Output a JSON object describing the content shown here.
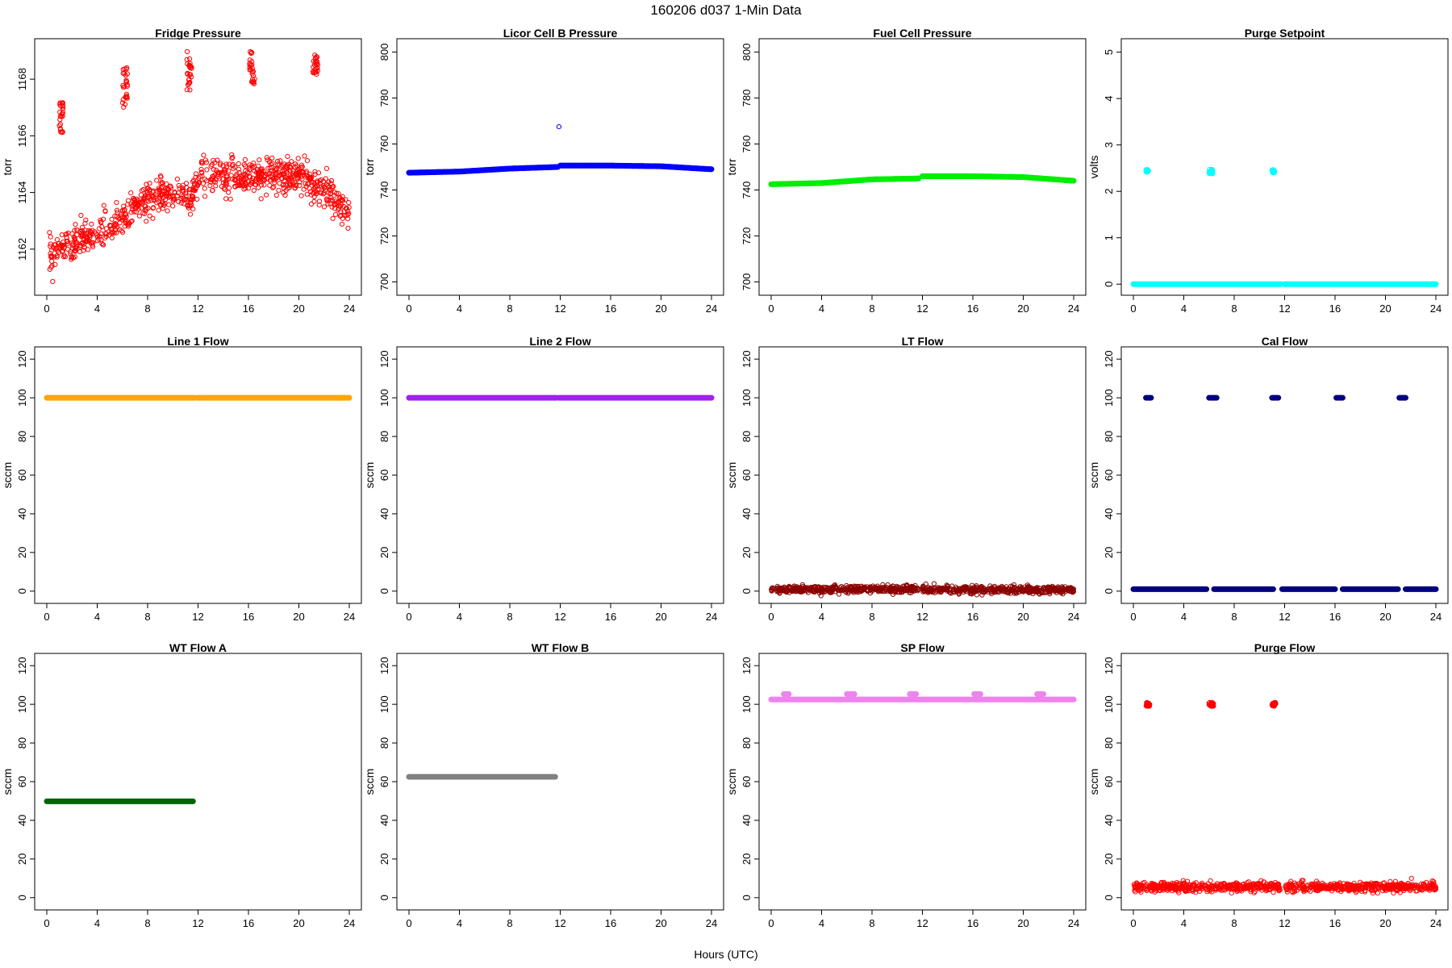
{
  "figure": {
    "title": "160206    d037    1-Min Data",
    "xlabel": "Hours (UTC)"
  },
  "chart_data": [
    {
      "type": "scatter",
      "title": "Fridge Pressure",
      "ylabel": "torr",
      "color": "#ff0000",
      "xlim": [
        0,
        24
      ],
      "xticks": [
        0,
        4,
        8,
        12,
        16,
        20,
        24
      ],
      "ylim": [
        1160.6,
        1169.2
      ],
      "yticks": [
        1162,
        1164,
        1166,
        1168
      ],
      "series": [
        {
          "kind": "noise_trend",
          "points": [
            [
              0.2,
              1161.8
            ],
            [
              2,
              1162.2
            ],
            [
              4,
              1162.5
            ],
            [
              6,
              1163.0
            ],
            [
              7,
              1163.5
            ],
            [
              9,
              1163.9
            ],
            [
              11.5,
              1163.8
            ],
            [
              12,
              1164.6
            ],
            [
              16,
              1164.6
            ],
            [
              20,
              1164.6
            ],
            [
              22,
              1164.1
            ],
            [
              24,
              1163.3
            ]
          ],
          "noise": 0.32
        },
        {
          "kind": "cluster",
          "x": [
            1.0,
            1.3
          ],
          "y": [
            1166.1,
            1167.2
          ]
        },
        {
          "kind": "cluster",
          "x": [
            6.0,
            6.4
          ],
          "y": [
            1167.0,
            1168.4
          ]
        },
        {
          "kind": "cluster",
          "x": [
            11.1,
            11.5
          ],
          "y": [
            1167.6,
            1169.0
          ]
        },
        {
          "kind": "cluster",
          "x": [
            16.1,
            16.5
          ],
          "y": [
            1167.8,
            1169.0
          ]
        },
        {
          "kind": "cluster",
          "x": [
            21.1,
            21.5
          ],
          "y": [
            1168.1,
            1168.9
          ]
        }
      ]
    },
    {
      "type": "scatter",
      "title": "Licor Cell B Pressure",
      "ylabel": "torr",
      "color": "#0000ff",
      "xlim": [
        0,
        24
      ],
      "xticks": [
        0,
        4,
        8,
        12,
        16,
        20,
        24
      ],
      "ylim": [
        697,
        803
      ],
      "yticks": [
        700,
        720,
        740,
        760,
        780,
        800
      ],
      "series": [
        {
          "kind": "line",
          "points": [
            [
              0,
              747.5
            ],
            [
              4,
              748.0
            ],
            [
              8,
              749.3
            ],
            [
              11.8,
              750.0
            ]
          ]
        },
        {
          "kind": "line",
          "points": [
            [
              12,
              750.6
            ],
            [
              16,
              750.6
            ],
            [
              20,
              750.3
            ],
            [
              24,
              749.0
            ]
          ]
        },
        {
          "kind": "point",
          "x": 11.9,
          "y": 767.5
        }
      ]
    },
    {
      "type": "scatter",
      "title": "Fuel Cell Pressure",
      "ylabel": "torr",
      "color": "#00ee00",
      "xlim": [
        0,
        24
      ],
      "xticks": [
        0,
        4,
        8,
        12,
        16,
        20,
        24
      ],
      "ylim": [
        697,
        803
      ],
      "yticks": [
        700,
        720,
        740,
        760,
        780,
        800
      ],
      "series": [
        {
          "kind": "line",
          "points": [
            [
              0,
              742.5
            ],
            [
              4,
              743.0
            ],
            [
              8,
              744.6
            ],
            [
              11.7,
              745.0
            ]
          ]
        },
        {
          "kind": "line",
          "points": [
            [
              12,
              746.0
            ],
            [
              16,
              746.0
            ],
            [
              20,
              745.6
            ],
            [
              24,
              744.0
            ]
          ]
        }
      ]
    },
    {
      "type": "scatter",
      "title": "Purge Setpoint",
      "ylabel": "volts",
      "color": "#00ffff",
      "xlim": [
        0,
        24
      ],
      "xticks": [
        0,
        4,
        8,
        12,
        16,
        20,
        24
      ],
      "ylim": [
        -0.1,
        5.15
      ],
      "yticks": [
        0,
        1,
        2,
        3,
        4,
        5
      ],
      "series": [
        {
          "kind": "line",
          "points": [
            [
              0,
              0.0
            ],
            [
              11.7,
              0.0
            ]
          ]
        },
        {
          "kind": "line",
          "points": [
            [
              12,
              0.0
            ],
            [
              24,
              0.0
            ]
          ]
        },
        {
          "kind": "cluster",
          "x": [
            1.0,
            1.2
          ],
          "y": [
            2.4,
            2.47
          ]
        },
        {
          "kind": "cluster",
          "x": [
            6.0,
            6.3
          ],
          "y": [
            2.38,
            2.48
          ]
        },
        {
          "kind": "cluster",
          "x": [
            11.0,
            11.2
          ],
          "y": [
            2.4,
            2.47
          ]
        }
      ]
    },
    {
      "type": "scatter",
      "title": "Line 1 Flow",
      "ylabel": "sccm",
      "color": "#ffa500",
      "xlim": [
        0,
        24
      ],
      "xticks": [
        0,
        4,
        8,
        12,
        16,
        20,
        24
      ],
      "ylim": [
        -3,
        123
      ],
      "yticks": [
        0,
        20,
        40,
        60,
        80,
        100,
        120
      ],
      "series": [
        {
          "kind": "line",
          "points": [
            [
              0,
              100
            ],
            [
              11.7,
              100
            ]
          ]
        },
        {
          "kind": "line",
          "points": [
            [
              11.9,
              100
            ],
            [
              24,
              100
            ]
          ]
        }
      ]
    },
    {
      "type": "scatter",
      "title": "Line 2 Flow",
      "ylabel": "sccm",
      "color": "#a020f0",
      "xlim": [
        0,
        24
      ],
      "xticks": [
        0,
        4,
        8,
        12,
        16,
        20,
        24
      ],
      "ylim": [
        -3,
        123
      ],
      "yticks": [
        0,
        20,
        40,
        60,
        80,
        100,
        120
      ],
      "series": [
        {
          "kind": "line",
          "points": [
            [
              0,
              100
            ],
            [
              11.7,
              100
            ]
          ]
        },
        {
          "kind": "line",
          "points": [
            [
              11.9,
              100
            ],
            [
              24,
              100
            ]
          ]
        }
      ]
    },
    {
      "type": "scatter",
      "title": "LT Flow",
      "ylabel": "sccm",
      "color": "#8b0000",
      "xlim": [
        0,
        24
      ],
      "xticks": [
        0,
        4,
        8,
        12,
        16,
        20,
        24
      ],
      "ylim": [
        -3,
        123
      ],
      "yticks": [
        0,
        20,
        40,
        60,
        80,
        100,
        120
      ],
      "series": [
        {
          "kind": "noise_trend",
          "points": [
            [
              0,
              1.0
            ],
            [
              11.7,
              1.0
            ]
          ],
          "noise": 1.0
        },
        {
          "kind": "noise_trend",
          "points": [
            [
              12,
              0.8
            ],
            [
              24,
              0.8
            ]
          ],
          "noise": 1.0
        }
      ]
    },
    {
      "type": "scatter",
      "title": "Cal Flow",
      "ylabel": "sccm",
      "color": "#000080",
      "xlim": [
        0,
        24
      ],
      "xticks": [
        0,
        4,
        8,
        12,
        16,
        20,
        24
      ],
      "ylim": [
        -3,
        123
      ],
      "yticks": [
        0,
        20,
        40,
        60,
        80,
        100,
        120
      ],
      "series": [
        {
          "kind": "line",
          "points": [
            [
              0,
              1
            ],
            [
              5.8,
              1
            ]
          ]
        },
        {
          "kind": "line",
          "points": [
            [
              6.4,
              1
            ],
            [
              11.1,
              1
            ]
          ]
        },
        {
          "kind": "line",
          "points": [
            [
              11.8,
              1
            ],
            [
              16.0,
              1
            ]
          ]
        },
        {
          "kind": "line",
          "points": [
            [
              16.6,
              1
            ],
            [
              21.0,
              1
            ]
          ]
        },
        {
          "kind": "line",
          "points": [
            [
              21.6,
              1
            ],
            [
              24,
              1
            ]
          ]
        },
        {
          "kind": "line",
          "points": [
            [
              1.0,
              100
            ],
            [
              1.4,
              100
            ]
          ]
        },
        {
          "kind": "line",
          "points": [
            [
              6.0,
              100
            ],
            [
              6.6,
              100
            ]
          ]
        },
        {
          "kind": "line",
          "points": [
            [
              11.0,
              100
            ],
            [
              11.5,
              100
            ]
          ]
        },
        {
          "kind": "line",
          "points": [
            [
              16.1,
              100
            ],
            [
              16.6,
              100
            ]
          ]
        },
        {
          "kind": "line",
          "points": [
            [
              21.1,
              100
            ],
            [
              21.6,
              100
            ]
          ]
        }
      ]
    },
    {
      "type": "scatter",
      "title": "WT Flow A",
      "ylabel": "sccm",
      "color": "#006400",
      "xlim": [
        0,
        24
      ],
      "xticks": [
        0,
        4,
        8,
        12,
        16,
        20,
        24
      ],
      "ylim": [
        -3,
        123
      ],
      "yticks": [
        0,
        20,
        40,
        60,
        80,
        100,
        120
      ],
      "series": [
        {
          "kind": "line",
          "points": [
            [
              0,
              49.8
            ],
            [
              11.6,
              49.8
            ]
          ]
        }
      ]
    },
    {
      "type": "scatter",
      "title": "WT Flow B",
      "ylabel": "sccm",
      "color": "#808080",
      "xlim": [
        0,
        24
      ],
      "xticks": [
        0,
        4,
        8,
        12,
        16,
        20,
        24
      ],
      "ylim": [
        -3,
        123
      ],
      "yticks": [
        0,
        20,
        40,
        60,
        80,
        100,
        120
      ],
      "series": [
        {
          "kind": "line",
          "points": [
            [
              0,
              62.5
            ],
            [
              11.6,
              62.5
            ]
          ]
        }
      ]
    },
    {
      "type": "scatter",
      "title": "SP Flow",
      "ylabel": "sccm",
      "color": "#ee82ee",
      "xlim": [
        0,
        24
      ],
      "xticks": [
        0,
        4,
        8,
        12,
        16,
        20,
        24
      ],
      "ylim": [
        -3,
        123
      ],
      "yticks": [
        0,
        20,
        40,
        60,
        80,
        100,
        120
      ],
      "series": [
        {
          "kind": "line",
          "points": [
            [
              0,
              102.5
            ],
            [
              24,
              102.5
            ]
          ]
        },
        {
          "kind": "line",
          "points": [
            [
              1.0,
              105.3
            ],
            [
              1.4,
              105.3
            ]
          ]
        },
        {
          "kind": "line",
          "points": [
            [
              6.0,
              105.3
            ],
            [
              6.6,
              105.3
            ]
          ]
        },
        {
          "kind": "line",
          "points": [
            [
              11.0,
              105.3
            ],
            [
              11.5,
              105.3
            ]
          ]
        },
        {
          "kind": "line",
          "points": [
            [
              16.1,
              105.3
            ],
            [
              16.6,
              105.3
            ]
          ]
        },
        {
          "kind": "line",
          "points": [
            [
              21.1,
              105.3
            ],
            [
              21.6,
              105.3
            ]
          ]
        }
      ]
    },
    {
      "type": "scatter",
      "title": "Purge Flow",
      "ylabel": "sccm",
      "color": "#ff0000",
      "xlim": [
        0,
        24
      ],
      "xticks": [
        0,
        4,
        8,
        12,
        16,
        20,
        24
      ],
      "ylim": [
        -3,
        123
      ],
      "yticks": [
        0,
        20,
        40,
        60,
        80,
        100,
        120
      ],
      "series": [
        {
          "kind": "noise_trend",
          "points": [
            [
              0,
              5.5
            ],
            [
              11.7,
              5.5
            ]
          ],
          "noise": 1.3
        },
        {
          "kind": "noise_trend",
          "points": [
            [
              12,
              5.5
            ],
            [
              24,
              5.5
            ]
          ],
          "noise": 1.3
        },
        {
          "kind": "cluster",
          "x": [
            1.0,
            1.3
          ],
          "y": [
            99,
            101
          ]
        },
        {
          "kind": "cluster",
          "x": [
            6.0,
            6.4
          ],
          "y": [
            99,
            101
          ]
        },
        {
          "kind": "cluster",
          "x": [
            11.0,
            11.3
          ],
          "y": [
            99,
            101
          ]
        }
      ]
    }
  ]
}
